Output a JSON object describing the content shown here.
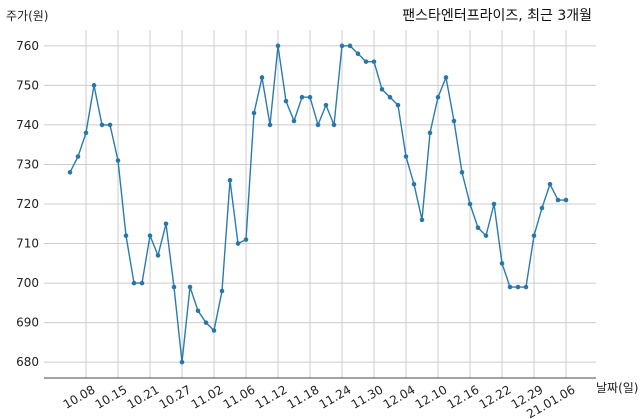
{
  "chart_data": {
    "type": "line",
    "title": "팬스타엔터프라이즈, 최근 3개월",
    "xlabel": "날짜(일)",
    "ylabel": "주가(원)",
    "ylim": [
      676,
      764
    ],
    "yticks": [
      680,
      690,
      700,
      710,
      720,
      730,
      740,
      750,
      760
    ],
    "grid": true,
    "x_tick_labels": [
      "10.08",
      "10.15",
      "10.21",
      "10.27",
      "11.02",
      "11.06",
      "11.12",
      "11.18",
      "11.24",
      "11.30",
      "12.04",
      "12.10",
      "12.16",
      "12.22",
      "12.29",
      "21.01.06"
    ],
    "x_tick_indices": [
      2,
      6,
      10,
      14,
      18,
      22,
      26,
      30,
      34,
      38,
      42,
      46,
      50,
      54,
      58,
      62
    ],
    "series": [
      {
        "color": "#2b7bb0",
        "values": [
          728,
          732,
          738,
          750,
          740,
          740,
          731,
          712,
          700,
          700,
          712,
          707,
          715,
          699,
          680,
          699,
          693,
          690,
          688,
          698,
          726,
          710,
          711,
          743,
          752,
          740,
          760,
          746,
          741,
          747,
          747,
          740,
          745,
          740,
          760,
          760,
          758,
          756,
          756,
          749,
          747,
          745,
          732,
          725,
          716,
          738,
          747,
          752,
          741,
          728,
          720,
          714,
          712,
          720,
          705,
          699,
          699,
          699,
          712,
          719,
          725,
          721,
          721
        ]
      }
    ]
  }
}
